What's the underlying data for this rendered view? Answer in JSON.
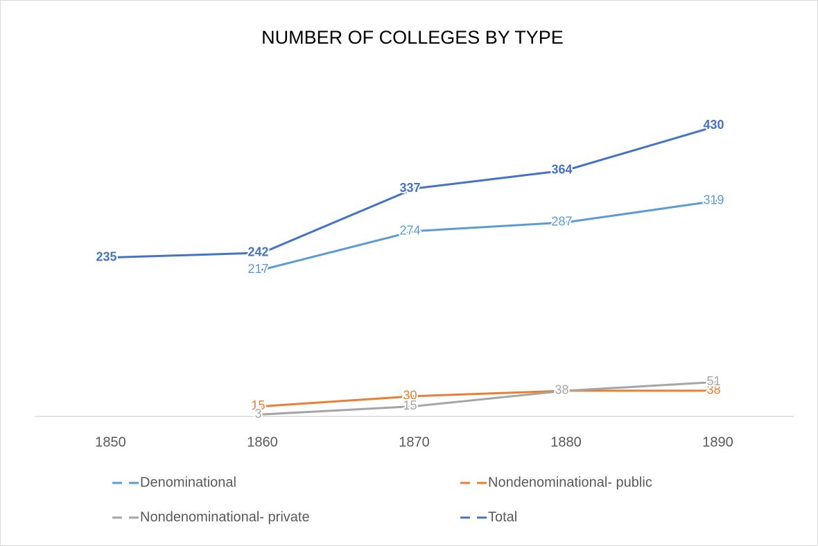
{
  "chart_data": {
    "type": "line",
    "title": "NUMBER OF COLLEGES BY TYPE",
    "categories": [
      "1850",
      "1860",
      "1870",
      "1880",
      "1890"
    ],
    "series": [
      {
        "name": "Denominational",
        "color": "#5b9bd5",
        "values": [
          null,
          217,
          274,
          287,
          319
        ]
      },
      {
        "name": "Nondenominational- public",
        "color": "#ed7d31",
        "values": [
          null,
          15,
          30,
          38,
          38
        ]
      },
      {
        "name": "Nondenominational- private",
        "color": "#a5a5a5",
        "values": [
          null,
          3,
          15,
          38,
          51
        ]
      },
      {
        "name": "Total",
        "color": "#4472c4",
        "values": [
          235,
          242,
          337,
          364,
          430
        ]
      }
    ],
    "ylim": [
      0,
      500
    ]
  }
}
